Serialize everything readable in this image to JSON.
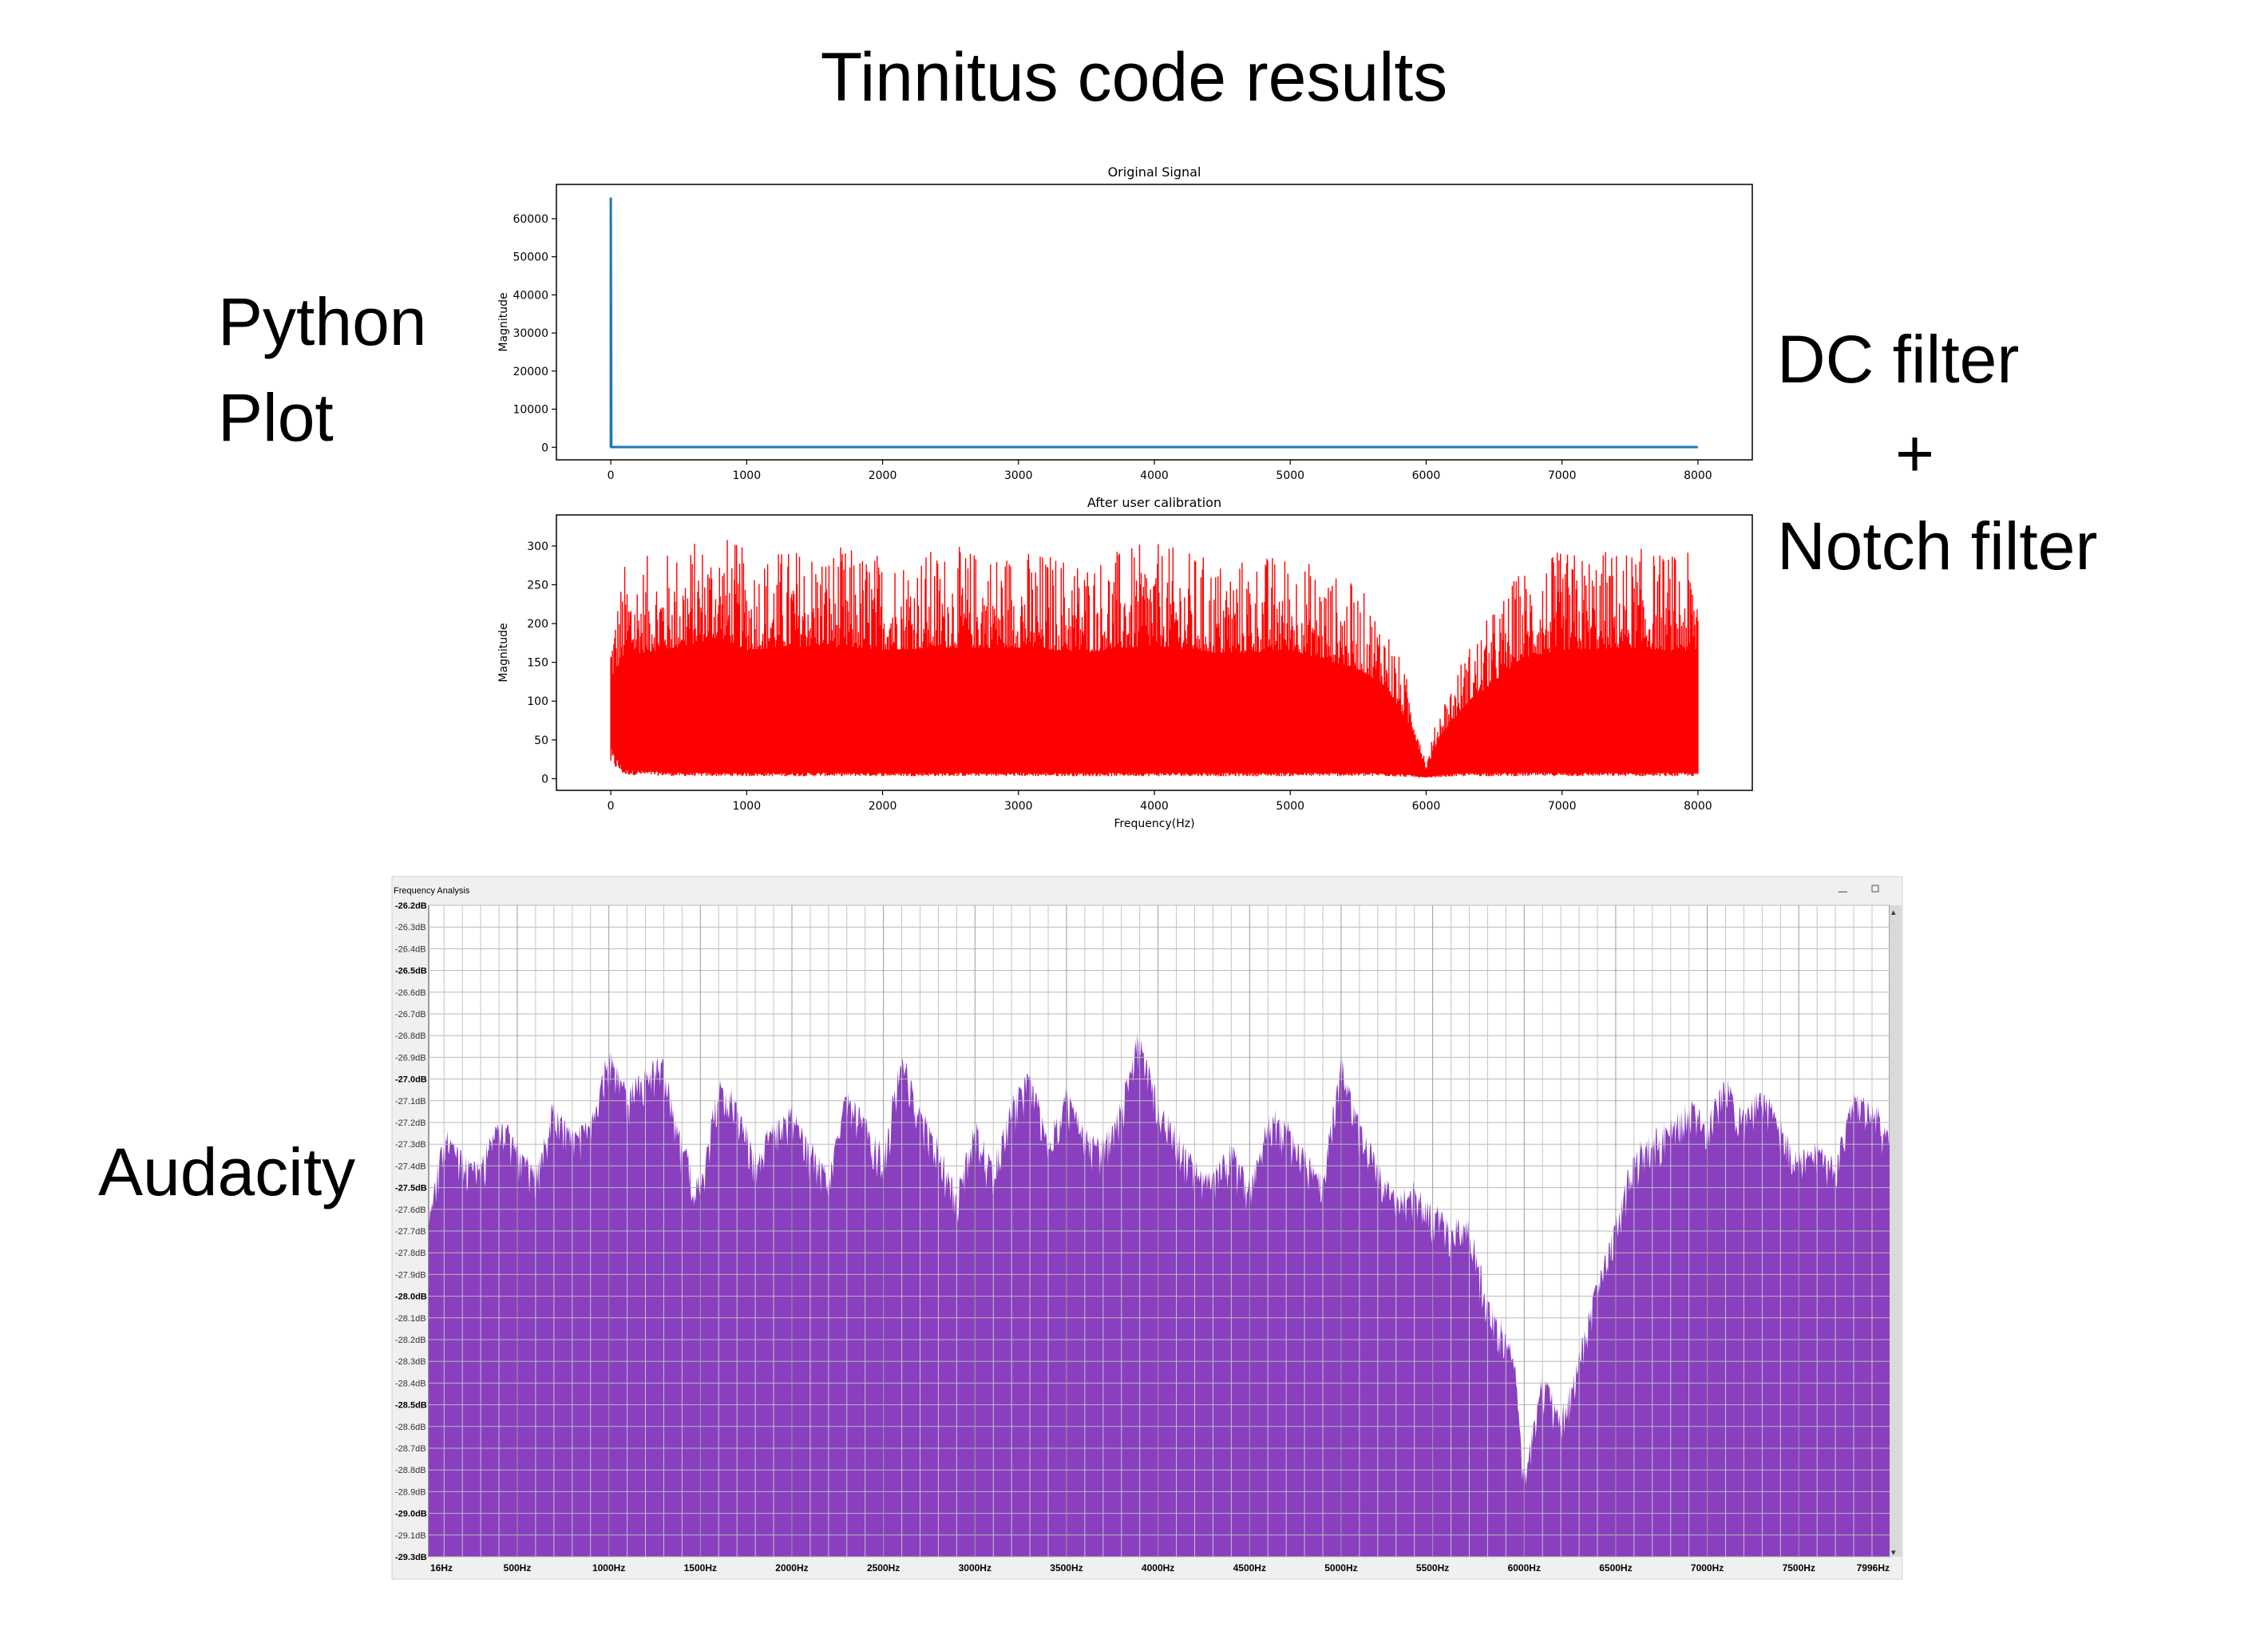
{
  "slide": {
    "title": "Tinnitus code results",
    "python_label_line1": "Python",
    "python_label_line2": "Plot",
    "filter_label_line1": "DC filter",
    "filter_label_line2": "+",
    "filter_label_line3": "Notch filter",
    "audacity_label": "Audacity"
  },
  "chart_data": [
    {
      "type": "line",
      "title": "Original Signal",
      "ylabel": "Magnitude",
      "xlabel": "",
      "xlim": [
        -400,
        8400
      ],
      "ylim": [
        -3300,
        69000
      ],
      "xticks": [
        0,
        1000,
        2000,
        3000,
        4000,
        5000,
        6000,
        7000,
        8000
      ],
      "yticks": [
        0,
        10000,
        20000,
        30000,
        40000,
        50000,
        60000
      ],
      "grid": false,
      "series": [
        {
          "color": "#1f77b4",
          "x": [
            0,
            0,
            4,
            8000
          ],
          "y": [
            0,
            65536,
            60,
            60
          ]
        }
      ]
    },
    {
      "type": "line",
      "title": "After user calibration",
      "ylabel": "Magnitude",
      "xlabel": "Frequency(Hz)",
      "xlim": [
        -400,
        8400
      ],
      "ylim": [
        -15,
        340
      ],
      "xticks": [
        0,
        1000,
        2000,
        3000,
        4000,
        5000,
        6000,
        7000,
        8000
      ],
      "yticks": [
        0,
        50,
        100,
        150,
        200,
        250,
        300
      ],
      "grid": false,
      "series": [
        {
          "color": "#ff0000",
          "envelope_x": [
            0,
            100,
            500,
            800,
            1000,
            1500,
            2000,
            2500,
            3000,
            3500,
            4000,
            4500,
            5000,
            5500,
            5700,
            5900,
            6000,
            6100,
            6300,
            6500,
            6700,
            7000,
            7500,
            8000
          ],
          "envelope_max": [
            200,
            280,
            300,
            325,
            295,
            305,
            295,
            300,
            300,
            290,
            305,
            285,
            295,
            250,
            210,
            110,
            20,
            95,
            170,
            220,
            275,
            295,
            300,
            290
          ],
          "envelope_min": [
            40,
            12,
            8,
            8,
            8,
            8,
            8,
            8,
            8,
            8,
            8,
            8,
            8,
            8,
            8,
            5,
            2,
            5,
            8,
            8,
            8,
            8,
            8,
            8
          ]
        }
      ]
    },
    {
      "type": "area",
      "title": "Frequency Analysis",
      "ylim": [
        -29.3,
        -26.2
      ],
      "y_tick_labels": [
        "-26.2dB",
        "-26.3dB",
        "-26.4dB",
        "-26.5dB",
        "-26.6dB",
        "-26.7dB",
        "-26.8dB",
        "-26.9dB",
        "-27.0dB",
        "-27.1dB",
        "-27.2dB",
        "-27.3dB",
        "-27.4dB",
        "-27.5dB",
        "-27.6dB",
        "-27.7dB",
        "-27.8dB",
        "-27.9dB",
        "-28.0dB",
        "-28.1dB",
        "-28.2dB",
        "-28.3dB",
        "-28.4dB",
        "-28.5dB",
        "-28.6dB",
        "-28.7dB",
        "-28.8dB",
        "-28.9dB",
        "-29.0dB",
        "-29.1dB",
        "-29.3dB"
      ],
      "x_tick_labels": [
        "16Hz",
        "500Hz",
        "1000Hz",
        "1500Hz",
        "2000Hz",
        "2500Hz",
        "3000Hz",
        "3500Hz",
        "4000Hz",
        "4500Hz",
        "5000Hz",
        "5500Hz",
        "6000Hz",
        "6500Hz",
        "7000Hz",
        "7500Hz",
        "7996Hz"
      ],
      "xlim": [
        16,
        7996
      ],
      "grid": true,
      "series": [
        {
          "color": "#8a3fbf",
          "x": [
            16,
            100,
            200,
            300,
            400,
            500,
            600,
            700,
            800,
            900,
            1000,
            1100,
            1200,
            1300,
            1400,
            1500,
            1600,
            1700,
            1800,
            1900,
            2000,
            2100,
            2200,
            2300,
            2400,
            2500,
            2600,
            2700,
            2800,
            2900,
            3000,
            3100,
            3200,
            3300,
            3400,
            3500,
            3600,
            3700,
            3800,
            3900,
            4000,
            4100,
            4200,
            4300,
            4400,
            4500,
            4600,
            4700,
            4800,
            4900,
            5000,
            5100,
            5200,
            5300,
            5400,
            5500,
            5600,
            5700,
            5800,
            5900,
            5950,
            6000,
            6100,
            6200,
            6300,
            6400,
            6500,
            6600,
            6700,
            6800,
            6900,
            7000,
            7100,
            7200,
            7300,
            7400,
            7500,
            7600,
            7700,
            7800,
            7900,
            7996
          ],
          "y": [
            -27.65,
            -27.25,
            -27.35,
            -27.4,
            -27.15,
            -27.3,
            -27.45,
            -27.1,
            -27.25,
            -27.2,
            -26.85,
            -27.05,
            -26.95,
            -26.9,
            -27.3,
            -27.5,
            -27.0,
            -27.1,
            -27.35,
            -27.2,
            -27.15,
            -27.3,
            -27.45,
            -27.05,
            -27.2,
            -27.35,
            -26.85,
            -27.15,
            -27.3,
            -27.55,
            -27.2,
            -27.4,
            -27.1,
            -26.95,
            -27.3,
            -27.05,
            -27.25,
            -27.3,
            -27.1,
            -26.75,
            -27.1,
            -27.25,
            -27.4,
            -27.45,
            -27.3,
            -27.5,
            -27.15,
            -27.2,
            -27.35,
            -27.45,
            -26.9,
            -27.2,
            -27.4,
            -27.55,
            -27.5,
            -27.6,
            -27.7,
            -27.65,
            -28.05,
            -28.2,
            -28.35,
            -28.9,
            -28.4,
            -28.6,
            -28.3,
            -27.95,
            -27.65,
            -27.35,
            -27.25,
            -27.2,
            -27.1,
            -27.2,
            -27.0,
            -27.15,
            -27.05,
            -27.2,
            -27.35,
            -27.3,
            -27.4,
            -27.05,
            -27.1,
            -27.25
          ]
        }
      ]
    }
  ]
}
